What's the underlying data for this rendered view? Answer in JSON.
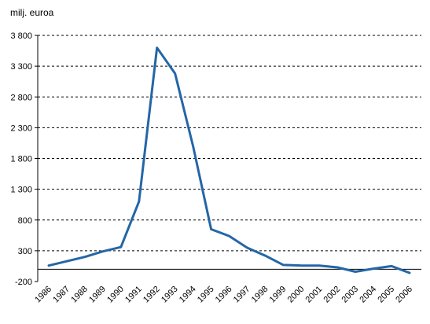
{
  "chart_data": {
    "type": "line",
    "title": "",
    "ylabel": "milj. euroa",
    "xlabel": "",
    "x": [
      "1986",
      "1987",
      "1988",
      "1989",
      "1990",
      "1991",
      "1992",
      "1993",
      "1994",
      "1995",
      "1996",
      "1997",
      "1998",
      "1999",
      "2000",
      "2001",
      "2002",
      "2003",
      "2004",
      "2005",
      "2006"
    ],
    "series": [
      {
        "values": [
          60,
          130,
          200,
          290,
          360,
          1100,
          3600,
          3180,
          2000,
          650,
          540,
          350,
          220,
          70,
          60,
          60,
          30,
          -40,
          10,
          50,
          -60
        ]
      }
    ],
    "y_ticks": [
      "-200",
      "300",
      "800",
      "1 300",
      "1 800",
      "2 300",
      "2 800",
      "3 300",
      "3 800"
    ],
    "ylim": [
      -200,
      3800
    ],
    "grid": "horizontal dashed",
    "legend": "none",
    "colors": {
      "series": "#2466a6",
      "grid": "#000000",
      "axis": "#000000"
    }
  }
}
